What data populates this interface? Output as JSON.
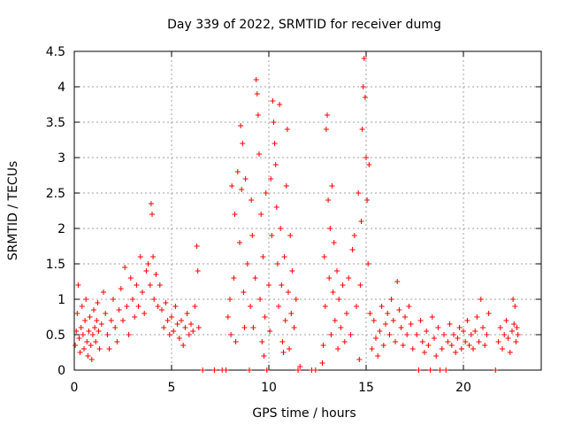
{
  "chart_data": {
    "type": "scatter",
    "title": "Day 339 of 2022, SRMTID for receiver dumg",
    "xlabel": "GPS time / hours",
    "ylabel": "SRMTID / TECUs",
    "xlim": [
      0,
      24
    ],
    "ylim": [
      0,
      4.5
    ],
    "xticks": [
      0,
      5,
      10,
      15,
      20
    ],
    "yticks": [
      0,
      0.5,
      1,
      1.5,
      2,
      2.5,
      3,
      3.5,
      4,
      4.5
    ],
    "xtick_labels": [
      "0",
      "5",
      "10",
      "15",
      "20"
    ],
    "ytick_labels": [
      "0",
      "0.5",
      "1",
      "1.5",
      "2",
      "2.5",
      "3",
      "3.5",
      "4",
      "4.5"
    ],
    "grid": true,
    "marker": "plus",
    "color": "#ff0000",
    "series": [
      {
        "name": "SRMTID",
        "points": [
          [
            0.05,
            0.35
          ],
          [
            0.1,
            0.55
          ],
          [
            0.15,
            0.8
          ],
          [
            0.2,
            1.2
          ],
          [
            0.25,
            0.45
          ],
          [
            0.3,
            0.25
          ],
          [
            0.35,
            0.6
          ],
          [
            0.4,
            0.9
          ],
          [
            0.45,
            0.5
          ],
          [
            0.5,
            0.3
          ],
          [
            0.55,
            0.7
          ],
          [
            0.6,
            1.0
          ],
          [
            0.65,
            0.4
          ],
          [
            0.7,
            0.2
          ],
          [
            0.75,
            0.55
          ],
          [
            0.8,
            0.75
          ],
          [
            0.85,
            0.35
          ],
          [
            0.9,
            0.15
          ],
          [
            0.95,
            0.5
          ],
          [
            1.0,
            0.85
          ],
          [
            1.05,
            0.6
          ],
          [
            1.1,
            0.4
          ],
          [
            1.15,
            0.7
          ],
          [
            1.2,
            0.95
          ],
          [
            1.25,
            0.55
          ],
          [
            1.3,
            0.3
          ],
          [
            1.4,
            0.65
          ],
          [
            1.5,
            1.1
          ],
          [
            1.6,
            0.8
          ],
          [
            1.7,
            0.5
          ],
          [
            1.8,
            0.3
          ],
          [
            1.9,
            0.7
          ],
          [
            2.0,
            1.0
          ],
          [
            2.1,
            0.6
          ],
          [
            2.2,
            0.4
          ],
          [
            2.3,
            0.85
          ],
          [
            2.4,
            1.15
          ],
          [
            2.5,
            0.7
          ],
          [
            2.6,
            1.45
          ],
          [
            2.7,
            0.9
          ],
          [
            2.8,
            0.5
          ],
          [
            2.9,
            1.3
          ],
          [
            3.0,
            1.0
          ],
          [
            3.1,
            0.75
          ],
          [
            3.2,
            1.2
          ],
          [
            3.3,
            0.9
          ],
          [
            3.4,
            1.6
          ],
          [
            3.5,
            1.1
          ],
          [
            3.6,
            0.8
          ],
          [
            3.7,
            1.4
          ],
          [
            3.8,
            1.5
          ],
          [
            3.9,
            1.2
          ],
          [
            3.95,
            2.35
          ],
          [
            4.0,
            2.2
          ],
          [
            4.05,
            1.6
          ],
          [
            4.1,
            1.0
          ],
          [
            4.2,
            1.35
          ],
          [
            4.3,
            0.9
          ],
          [
            4.4,
            1.2
          ],
          [
            4.5,
            0.85
          ],
          [
            4.6,
            0.6
          ],
          [
            4.7,
            0.95
          ],
          [
            4.8,
            0.7
          ],
          [
            4.9,
            0.5
          ],
          [
            5.0,
            0.75
          ],
          [
            5.1,
            0.55
          ],
          [
            5.2,
            0.9
          ],
          [
            5.3,
            0.65
          ],
          [
            5.4,
            0.45
          ],
          [
            5.5,
            0.7
          ],
          [
            5.6,
            0.35
          ],
          [
            5.7,
            0.6
          ],
          [
            5.8,
            0.8
          ],
          [
            5.9,
            0.5
          ],
          [
            6.0,
            0.65
          ],
          [
            6.1,
            0.55
          ],
          [
            6.2,
            0.9
          ],
          [
            6.3,
            1.75
          ],
          [
            6.35,
            1.4
          ],
          [
            6.4,
            0.6
          ],
          [
            6.6,
            0.0
          ],
          [
            7.2,
            0.0
          ],
          [
            7.6,
            0.0
          ],
          [
            7.8,
            0.0
          ],
          [
            7.9,
            0.75
          ],
          [
            8.0,
            1.0
          ],
          [
            8.05,
            0.5
          ],
          [
            8.1,
            2.6
          ],
          [
            8.2,
            1.3
          ],
          [
            8.25,
            2.2
          ],
          [
            8.3,
            0.4
          ],
          [
            8.4,
            2.8
          ],
          [
            8.5,
            1.8
          ],
          [
            8.55,
            3.45
          ],
          [
            8.6,
            2.55
          ],
          [
            8.65,
            3.2
          ],
          [
            8.7,
            1.1
          ],
          [
            8.75,
            0.6
          ],
          [
            8.8,
            2.7
          ],
          [
            8.9,
            1.5
          ],
          [
            9.0,
            0.0
          ],
          [
            9.05,
            0.9
          ],
          [
            9.1,
            2.4
          ],
          [
            9.15,
            1.9
          ],
          [
            9.2,
            0.6
          ],
          [
            9.3,
            1.3
          ],
          [
            9.35,
            4.1
          ],
          [
            9.4,
            3.9
          ],
          [
            9.45,
            3.6
          ],
          [
            9.5,
            3.05
          ],
          [
            9.55,
            1.0
          ],
          [
            9.6,
            2.2
          ],
          [
            9.65,
            0.4
          ],
          [
            9.7,
            1.6
          ],
          [
            9.75,
            0.2
          ],
          [
            9.8,
            0.75
          ],
          [
            9.85,
            2.5
          ],
          [
            9.9,
            0.0
          ],
          [
            10.0,
            1.2
          ],
          [
            10.05,
            0.55
          ],
          [
            10.1,
            2.7
          ],
          [
            10.15,
            1.9
          ],
          [
            10.2,
            3.8
          ],
          [
            10.25,
            3.5
          ],
          [
            10.3,
            3.2
          ],
          [
            10.35,
            2.9
          ],
          [
            10.4,
            2.3
          ],
          [
            10.45,
            1.5
          ],
          [
            10.5,
            0.9
          ],
          [
            10.55,
            3.75
          ],
          [
            10.6,
            2.0
          ],
          [
            10.65,
            1.2
          ],
          [
            10.7,
            0.4
          ],
          [
            10.75,
            0.25
          ],
          [
            10.8,
            1.6
          ],
          [
            10.85,
            0.7
          ],
          [
            10.9,
            2.6
          ],
          [
            10.95,
            3.4
          ],
          [
            11.0,
            1.1
          ],
          [
            11.05,
            0.3
          ],
          [
            11.1,
            1.9
          ],
          [
            11.15,
            0.8
          ],
          [
            11.2,
            1.4
          ],
          [
            11.3,
            0.6
          ],
          [
            11.4,
            1.0
          ],
          [
            11.5,
            0.0
          ],
          [
            11.6,
            0.05
          ],
          [
            12.2,
            0.0
          ],
          [
            12.4,
            0.0
          ],
          [
            12.75,
            0.1
          ],
          [
            12.8,
            0.35
          ],
          [
            12.85,
            1.6
          ],
          [
            12.9,
            0.9
          ],
          [
            12.95,
            3.4
          ],
          [
            13.0,
            3.6
          ],
          [
            13.05,
            2.4
          ],
          [
            13.1,
            1.3
          ],
          [
            13.15,
            2.0
          ],
          [
            13.2,
            0.5
          ],
          [
            13.25,
            2.6
          ],
          [
            13.3,
            1.1
          ],
          [
            13.35,
            1.8
          ],
          [
            13.4,
            0.7
          ],
          [
            13.5,
            1.4
          ],
          [
            13.55,
            0.3
          ],
          [
            13.6,
            1.0
          ],
          [
            13.7,
            0.6
          ],
          [
            13.8,
            1.2
          ],
          [
            13.9,
            0.4
          ],
          [
            14.0,
            0.8
          ],
          [
            14.1,
            1.3
          ],
          [
            14.2,
            0.5
          ],
          [
            14.3,
            1.7
          ],
          [
            14.4,
            1.9
          ],
          [
            14.5,
            0.9
          ],
          [
            14.6,
            2.5
          ],
          [
            14.65,
            0.15
          ],
          [
            14.7,
            1.2
          ],
          [
            14.75,
            2.1
          ],
          [
            14.8,
            3.4
          ],
          [
            14.85,
            4.0
          ],
          [
            14.9,
            4.4
          ],
          [
            14.95,
            3.85
          ],
          [
            15.0,
            3.0
          ],
          [
            15.05,
            2.4
          ],
          [
            15.1,
            1.5
          ],
          [
            15.15,
            2.9
          ],
          [
            15.2,
            0.8
          ],
          [
            15.3,
            0.3
          ],
          [
            15.4,
            0.7
          ],
          [
            15.5,
            0.45
          ],
          [
            15.6,
            0.2
          ],
          [
            15.7,
            0.55
          ],
          [
            15.8,
            0.9
          ],
          [
            15.9,
            0.35
          ],
          [
            16.0,
            0.65
          ],
          [
            16.1,
            0.8
          ],
          [
            16.2,
            0.5
          ],
          [
            16.3,
            1.0
          ],
          [
            16.4,
            0.7
          ],
          [
            16.5,
            0.4
          ],
          [
            16.6,
            1.25
          ],
          [
            16.7,
            0.85
          ],
          [
            16.8,
            0.6
          ],
          [
            16.9,
            0.35
          ],
          [
            17.0,
            0.75
          ],
          [
            17.1,
            0.5
          ],
          [
            17.2,
            0.9
          ],
          [
            17.3,
            0.65
          ],
          [
            17.4,
            0.3
          ],
          [
            17.6,
            0.5
          ],
          [
            17.7,
            0.0
          ],
          [
            17.8,
            0.7
          ],
          [
            17.9,
            0.4
          ],
          [
            18.0,
            0.25
          ],
          [
            18.1,
            0.55
          ],
          [
            18.2,
            0.35
          ],
          [
            18.3,
            0.0
          ],
          [
            18.4,
            0.75
          ],
          [
            18.5,
            0.45
          ],
          [
            18.6,
            0.2
          ],
          [
            18.7,
            0.6
          ],
          [
            18.8,
            0.0
          ],
          [
            18.9,
            0.3
          ],
          [
            19.0,
            0.5
          ],
          [
            19.1,
            0.0
          ],
          [
            19.2,
            0.4
          ],
          [
            19.3,
            0.65
          ],
          [
            19.4,
            0.35
          ],
          [
            19.5,
            0.5
          ],
          [
            19.6,
            0.25
          ],
          [
            19.7,
            0.45
          ],
          [
            19.8,
            0.6
          ],
          [
            19.9,
            0.3
          ],
          [
            20.0,
            0.55
          ],
          [
            20.1,
            0.4
          ],
          [
            20.2,
            0.7
          ],
          [
            20.3,
            0.35
          ],
          [
            20.4,
            0.5
          ],
          [
            20.5,
            0.3
          ],
          [
            20.6,
            0.55
          ],
          [
            20.7,
            0.75
          ],
          [
            20.8,
            0.4
          ],
          [
            20.9,
            1.0
          ],
          [
            21.0,
            0.6
          ],
          [
            21.1,
            0.35
          ],
          [
            21.2,
            0.5
          ],
          [
            21.3,
            0.8
          ],
          [
            21.65,
            0.0
          ],
          [
            21.8,
            0.4
          ],
          [
            21.9,
            0.6
          ],
          [
            22.0,
            0.3
          ],
          [
            22.1,
            0.5
          ],
          [
            22.2,
            0.7
          ],
          [
            22.3,
            0.45
          ],
          [
            22.4,
            0.25
          ],
          [
            22.5,
            0.55
          ],
          [
            22.55,
            1.0
          ],
          [
            22.6,
            0.65
          ],
          [
            22.65,
            0.9
          ],
          [
            22.7,
            0.4
          ],
          [
            22.75,
            0.6
          ],
          [
            22.8,
            0.5
          ]
        ]
      }
    ]
  }
}
